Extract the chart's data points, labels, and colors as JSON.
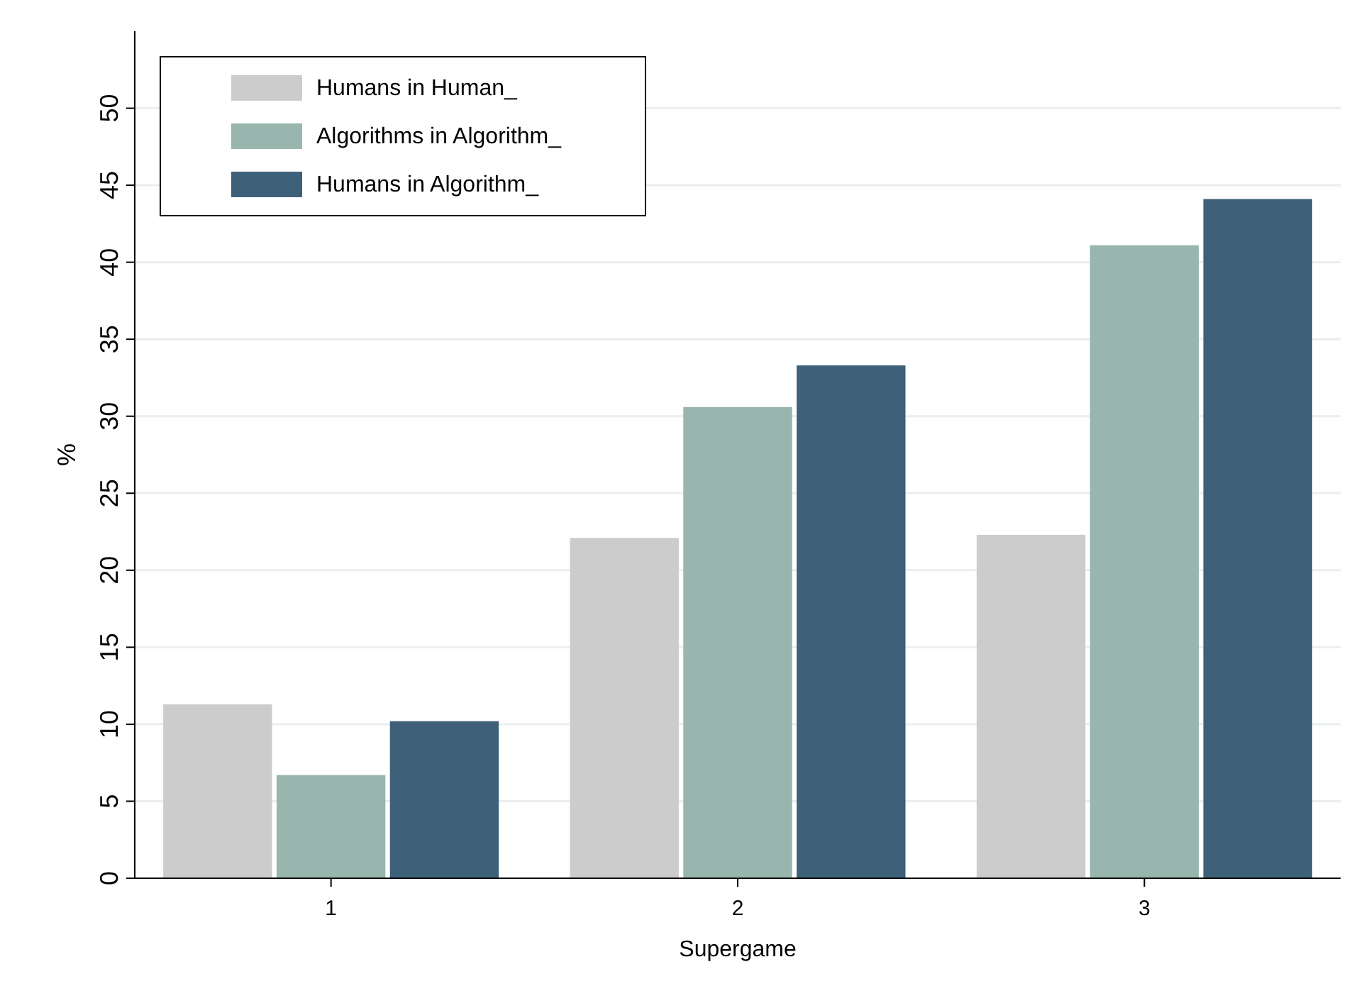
{
  "chart_data": {
    "type": "bar",
    "xlabel": "Supergame",
    "ylabel": "%",
    "categories": [
      "1",
      "2",
      "3"
    ],
    "series": [
      {
        "name": "Humans in Human_",
        "color": "#cccccc",
        "values": [
          11.3,
          22.1,
          22.3
        ]
      },
      {
        "name": "Algorithms in Algorithm_",
        "color": "#98b5ae",
        "values": [
          6.7,
          30.6,
          41.1
        ]
      },
      {
        "name": "Humans in Algorithm_",
        "color": "#3e6179",
        "values": [
          10.2,
          33.3,
          44.1
        ]
      }
    ],
    "ylim": [
      0,
      55
    ],
    "yticks": [
      0,
      5,
      10,
      15,
      20,
      25,
      30,
      35,
      40,
      45,
      50
    ],
    "grid": "y",
    "legend": "top left"
  }
}
